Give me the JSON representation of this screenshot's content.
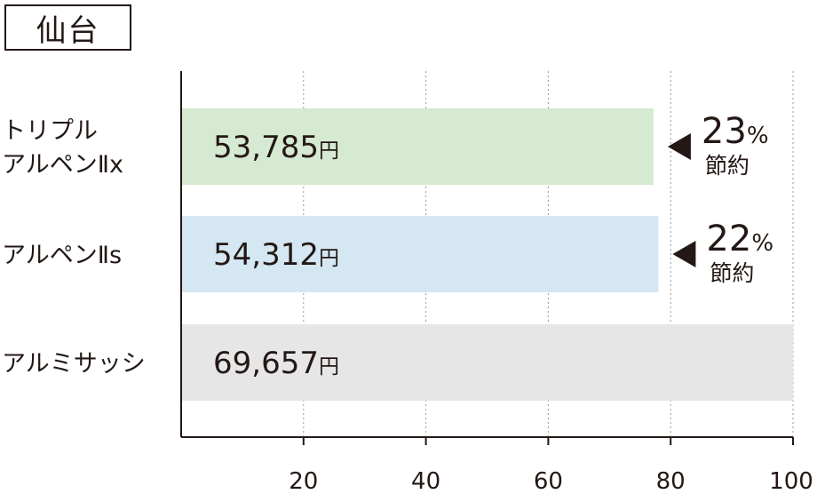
{
  "header": {
    "city": "仙台"
  },
  "chart_data": {
    "type": "bar",
    "orientation": "horizontal",
    "categories": [
      {
        "lines": [
          "トリプル",
          "アルペンⅡx"
        ]
      },
      {
        "lines": [
          "アルペンⅡs"
        ]
      },
      {
        "lines": [
          "アルミサッシ"
        ]
      }
    ],
    "values": [
      77.2,
      78.0,
      100
    ],
    "value_labels": [
      {
        "number": "53,785",
        "unit": "円"
      },
      {
        "number": "54,312",
        "unit": "円"
      },
      {
        "number": "69,657",
        "unit": "円"
      }
    ],
    "annotations": [
      {
        "percent": "23",
        "percent_sign": "%",
        "text": "節約"
      },
      {
        "percent": "22",
        "percent_sign": "%",
        "text": "節約"
      },
      null
    ],
    "colors": [
      "#d5ead0",
      "#d4e7f3",
      "#e6e6e6"
    ],
    "xticks": [
      20,
      40,
      60,
      80,
      100
    ],
    "xlim": [
      0,
      100
    ],
    "grid": true,
    "legend": "none"
  }
}
